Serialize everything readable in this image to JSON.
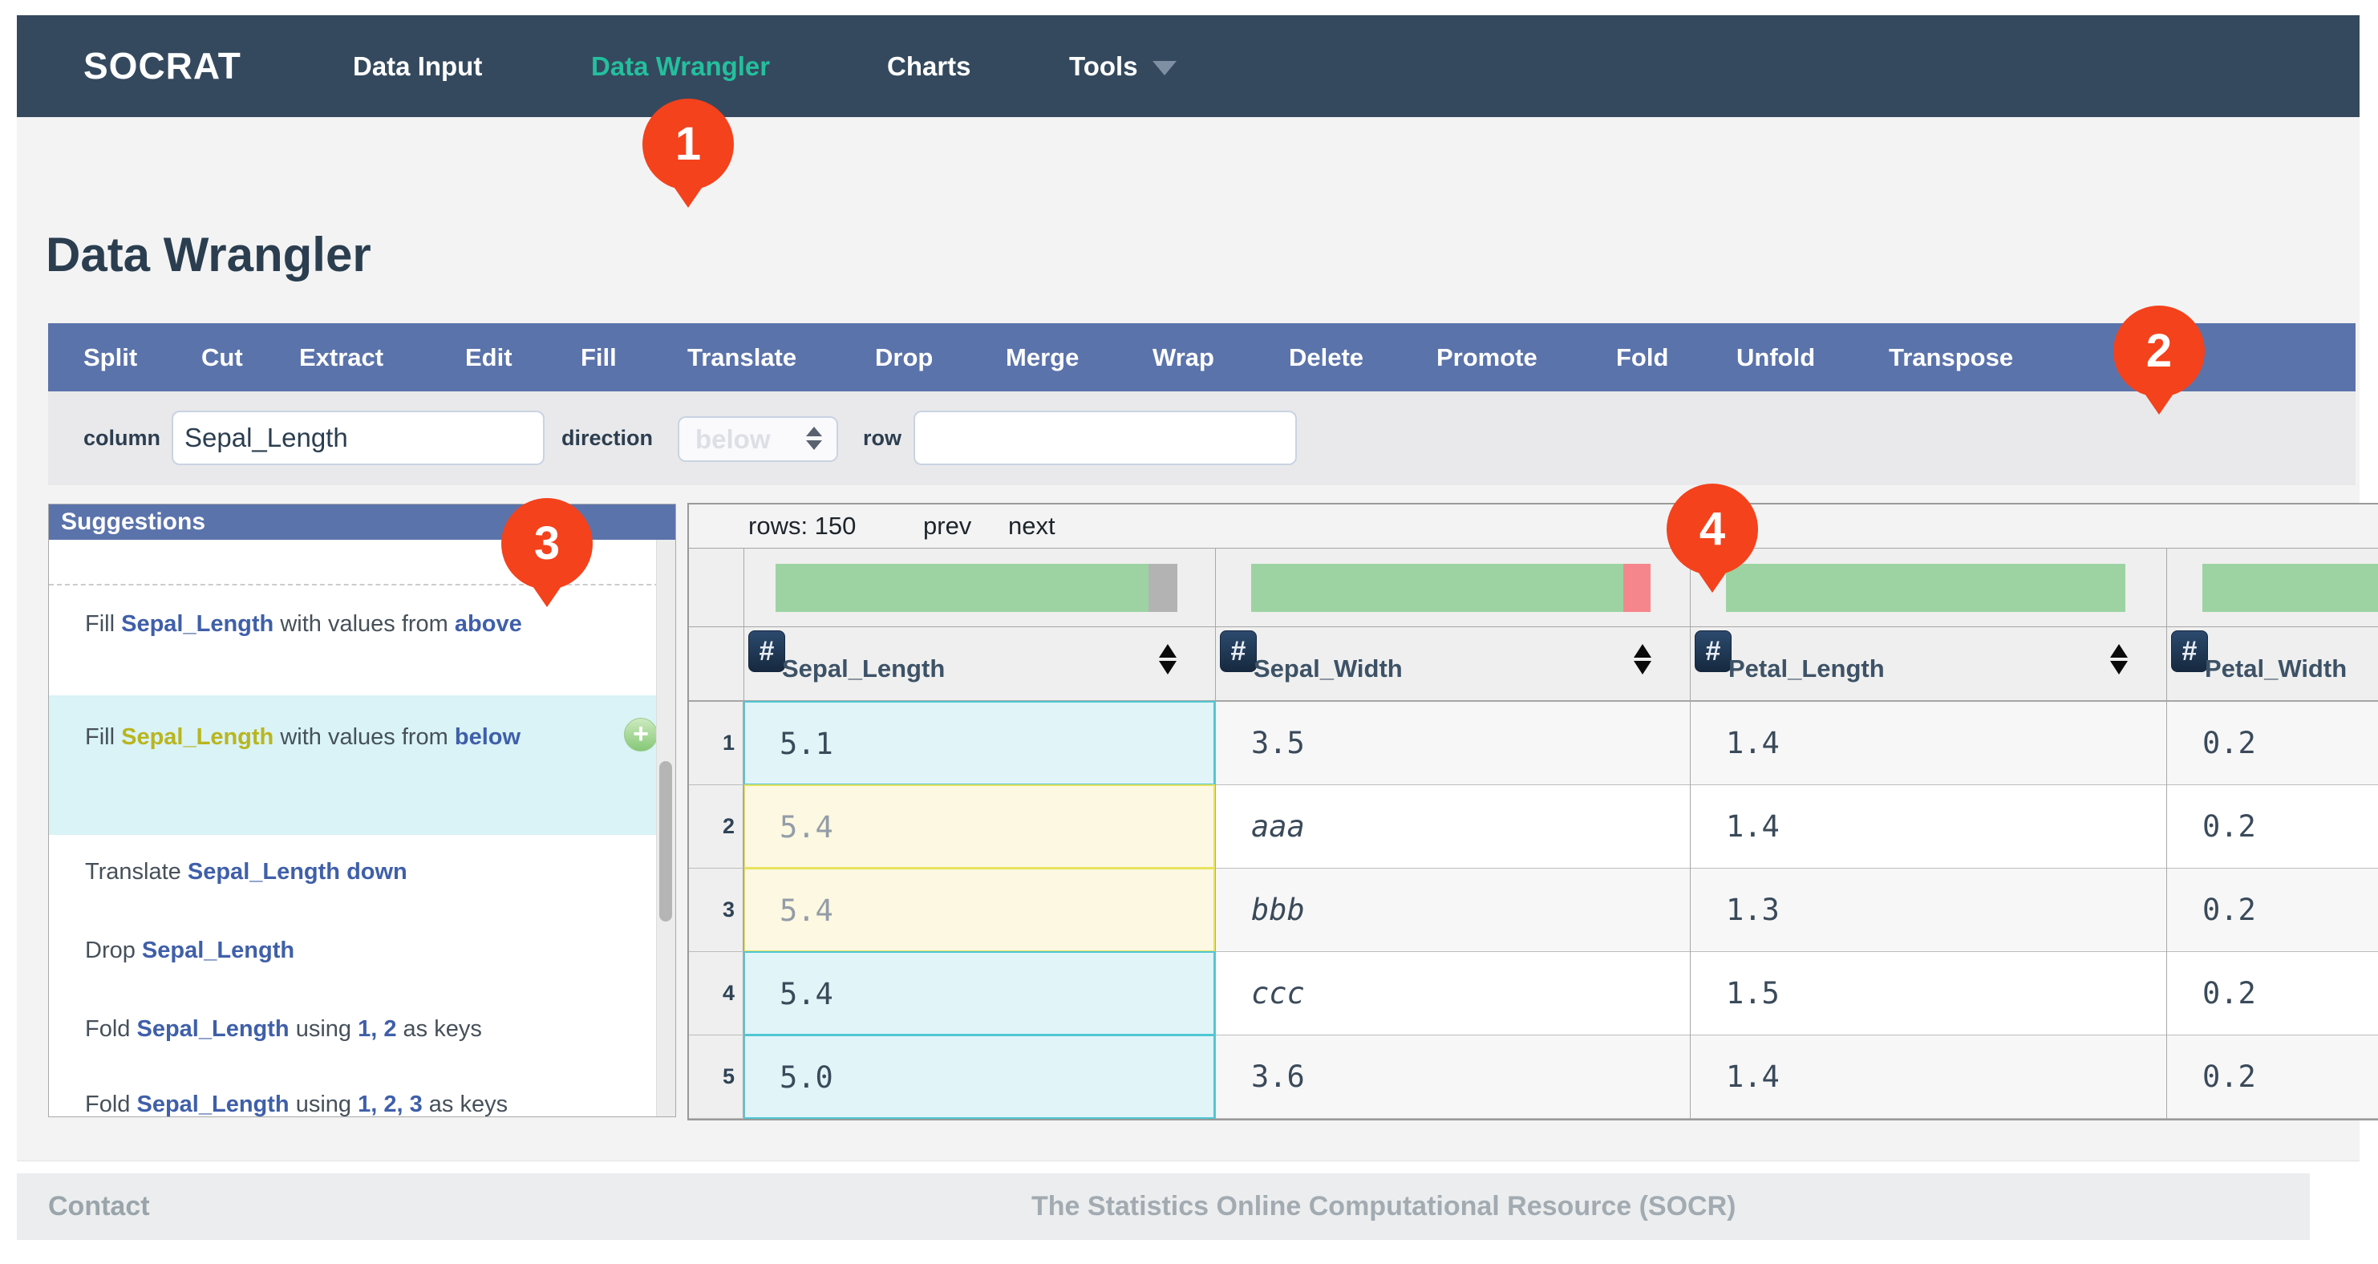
{
  "navbar": {
    "brand": "SOCRAT",
    "items": [
      {
        "label": "Data Input",
        "active": false,
        "caret": false
      },
      {
        "label": "Data Wrangler",
        "active": true,
        "caret": false
      },
      {
        "label": "Charts",
        "active": false,
        "caret": false
      },
      {
        "label": "Tools",
        "active": false,
        "caret": true
      }
    ]
  },
  "page": {
    "title": "Data Wrangler"
  },
  "toolbar": {
    "items": [
      "Split",
      "Cut",
      "Extract",
      "Edit",
      "Fill",
      "Translate",
      "Drop",
      "Merge",
      "Wrap",
      "Delete",
      "Promote",
      "Fold",
      "Unfold",
      "Transpose"
    ]
  },
  "form": {
    "column_label": "column",
    "column_value": "Sepal_Length",
    "direction_label": "direction",
    "direction_value": "below",
    "row_label": "row",
    "row_value": ""
  },
  "suggestions": {
    "header": "Suggestions",
    "items": [
      {
        "segments": [
          {
            "t": "Fill ",
            "s": "plain"
          },
          {
            "t": "Sepal_Length",
            "s": "link"
          },
          {
            "t": " with values from ",
            "s": "plain"
          },
          {
            "t": "above",
            "s": "link"
          }
        ],
        "highlighted": false,
        "add_button": false
      },
      {
        "segments": [
          {
            "t": "Fill ",
            "s": "plain"
          },
          {
            "t": "Sepal_Length",
            "s": "warn"
          },
          {
            "t": " with values from ",
            "s": "plain"
          },
          {
            "t": "below",
            "s": "link"
          }
        ],
        "highlighted": true,
        "add_button": true,
        "add_label": "+"
      },
      {
        "segments": [
          {
            "t": "Translate ",
            "s": "plain"
          },
          {
            "t": "Sepal_Length down",
            "s": "link"
          }
        ],
        "highlighted": false,
        "add_button": false
      },
      {
        "segments": [
          {
            "t": "Drop ",
            "s": "plain"
          },
          {
            "t": "Sepal_Length",
            "s": "link"
          }
        ],
        "highlighted": false,
        "add_button": false
      },
      {
        "segments": [
          {
            "t": "Fold ",
            "s": "plain"
          },
          {
            "t": "Sepal_Length",
            "s": "link"
          },
          {
            "t": " using ",
            "s": "plain"
          },
          {
            "t": "1, 2",
            "s": "link"
          },
          {
            "t": " as keys",
            "s": "plain"
          }
        ],
        "highlighted": false,
        "add_button": false
      },
      {
        "segments": [
          {
            "t": "Fold ",
            "s": "plain"
          },
          {
            "t": "Sepal_Length",
            "s": "link"
          },
          {
            "t": " using ",
            "s": "plain"
          },
          {
            "t": "1, 2, 3",
            "s": "link"
          },
          {
            "t": " as keys",
            "s": "plain"
          }
        ],
        "highlighted": false,
        "add_button": false
      }
    ]
  },
  "grid": {
    "rows_count_label": "rows: 150",
    "pager": [
      "prev",
      "next"
    ],
    "columns": [
      {
        "name": "Sepal_Length",
        "type_icon": "#",
        "sortable": true,
        "bar": {
          "green_w": 465,
          "tip": "gray",
          "tip_w": 36
        }
      },
      {
        "name": "Sepal_Width",
        "type_icon": "#",
        "sortable": true,
        "bar": {
          "green_w": 464,
          "tip": "red",
          "tip_w": 34
        }
      },
      {
        "name": "Petal_Length",
        "type_icon": "#",
        "sortable": true,
        "bar": {
          "green_w": 498,
          "tip": null,
          "tip_w": 0
        }
      },
      {
        "name": "Petal_Width",
        "type_icon": "#",
        "sortable": false,
        "bar": {
          "green_w": 498,
          "tip": null,
          "tip_w": 0
        }
      }
    ],
    "rows": [
      {
        "n": "1",
        "cells": [
          {
            "v": "5.1",
            "hl": "cyan",
            "dim": false,
            "italic": false
          },
          {
            "v": "3.5",
            "hl": null,
            "dim": false,
            "italic": false
          },
          {
            "v": "1.4",
            "hl": null,
            "dim": false,
            "italic": false
          },
          {
            "v": "0.2",
            "hl": null,
            "dim": false,
            "italic": false
          }
        ]
      },
      {
        "n": "2",
        "cells": [
          {
            "v": "5.4",
            "hl": "yellow",
            "dim": true,
            "italic": false
          },
          {
            "v": "aaa",
            "hl": null,
            "dim": false,
            "italic": true
          },
          {
            "v": "1.4",
            "hl": null,
            "dim": false,
            "italic": false
          },
          {
            "v": "0.2",
            "hl": null,
            "dim": false,
            "italic": false
          }
        ]
      },
      {
        "n": "3",
        "cells": [
          {
            "v": "5.4",
            "hl": "yellow",
            "dim": true,
            "italic": false
          },
          {
            "v": "bbb",
            "hl": null,
            "dim": false,
            "italic": true
          },
          {
            "v": "1.3",
            "hl": null,
            "dim": false,
            "italic": false
          },
          {
            "v": "0.2",
            "hl": null,
            "dim": false,
            "italic": false
          }
        ]
      },
      {
        "n": "4",
        "cells": [
          {
            "v": "5.4",
            "hl": "cyan",
            "dim": false,
            "italic": false
          },
          {
            "v": "ccc",
            "hl": null,
            "dim": false,
            "italic": true
          },
          {
            "v": "1.5",
            "hl": null,
            "dim": false,
            "italic": false
          },
          {
            "v": "0.2",
            "hl": null,
            "dim": false,
            "italic": false
          }
        ]
      },
      {
        "n": "5",
        "cells": [
          {
            "v": "5.0",
            "hl": "cyan",
            "dim": false,
            "italic": false
          },
          {
            "v": "3.6",
            "hl": null,
            "dim": false,
            "italic": false
          },
          {
            "v": "1.4",
            "hl": null,
            "dim": false,
            "italic": false
          },
          {
            "v": "0.2",
            "hl": null,
            "dim": false,
            "italic": false
          }
        ]
      }
    ]
  },
  "badges": [
    {
      "label": "1"
    },
    {
      "label": "2"
    },
    {
      "label": "3"
    },
    {
      "label": "4"
    }
  ],
  "colors": {
    "navbar_bg": "#34495e",
    "nav_active": "#24bf9e",
    "toolbar_blue": "#5b73ab",
    "badge_orange": "#f4421c",
    "bar_green": "#9dd3a2",
    "bar_gray": "#b3b3b3",
    "bar_red": "#f5868c",
    "cell_cyan_bg": "#e1f4f8",
    "cell_cyan_border": "#4ec7d3",
    "cell_yellow_bg": "#fcf8e1",
    "cell_yellow_border": "#e8e25e"
  },
  "footer": {
    "contact": "Contact",
    "center": "The Statistics Online Computational Resource (SOCR)"
  }
}
